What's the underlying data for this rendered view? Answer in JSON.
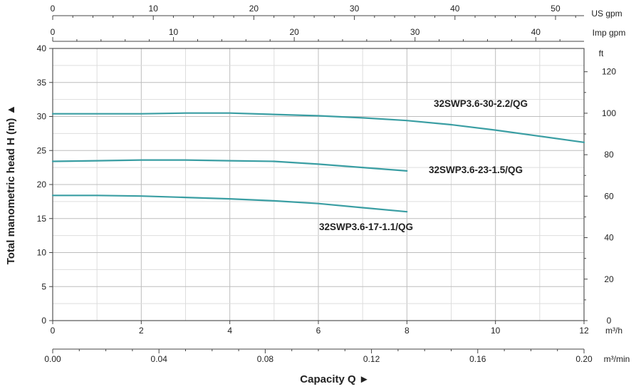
{
  "chart_data": {
    "type": "line",
    "x_unit": "m³/h",
    "xlim": [
      0,
      12
    ],
    "ylim": [
      0,
      40
    ],
    "ylabel": "Total manometric head H (m) ▲",
    "xlabel": "Capacity Q ►",
    "grid": true,
    "line_color": "#3a9ea3",
    "x_ticks": [
      0,
      2,
      4,
      6,
      8,
      10,
      12
    ],
    "y_ticks": [
      0,
      5,
      10,
      15,
      20,
      25,
      30,
      35,
      40
    ],
    "series": [
      {
        "name": "32SWP3.6-30-2.2/QG",
        "x": [
          0,
          1,
          2,
          3,
          4,
          5,
          6,
          7,
          8,
          9,
          10,
          11,
          12
        ],
        "y": [
          30.4,
          30.4,
          30.4,
          30.5,
          30.5,
          30.3,
          30.1,
          29.8,
          29.4,
          28.8,
          28.0,
          27.1,
          26.2
        ]
      },
      {
        "name": "32SWP3.6-23-1.5/QG",
        "x": [
          0,
          1,
          2,
          3,
          4,
          5,
          6,
          7,
          8
        ],
        "y": [
          23.4,
          23.5,
          23.6,
          23.6,
          23.5,
          23.4,
          23.0,
          22.5,
          22.0
        ]
      },
      {
        "name": "32SWP3.6-17-1.1/QG",
        "x": [
          0,
          1,
          2,
          3,
          4,
          5,
          6,
          7,
          8
        ],
        "y": [
          18.4,
          18.4,
          18.3,
          18.1,
          17.9,
          17.6,
          17.2,
          16.6,
          16.0
        ]
      }
    ],
    "secondary_axes": {
      "us_gpm": {
        "unit": "US gpm",
        "ticks": [
          0,
          10,
          20,
          30,
          40,
          50
        ]
      },
      "imp_gpm": {
        "unit": "Imp gpm",
        "ticks": [
          0,
          10,
          20,
          30,
          40
        ]
      },
      "m3_min": {
        "unit": "m³/min",
        "ticks": [
          "0.00",
          "0.04",
          "0.08",
          "0.12",
          "0.16",
          "0.20"
        ]
      },
      "ft": {
        "unit": "ft",
        "ticks": [
          0,
          20,
          40,
          60,
          80,
          100,
          120
        ]
      }
    }
  }
}
